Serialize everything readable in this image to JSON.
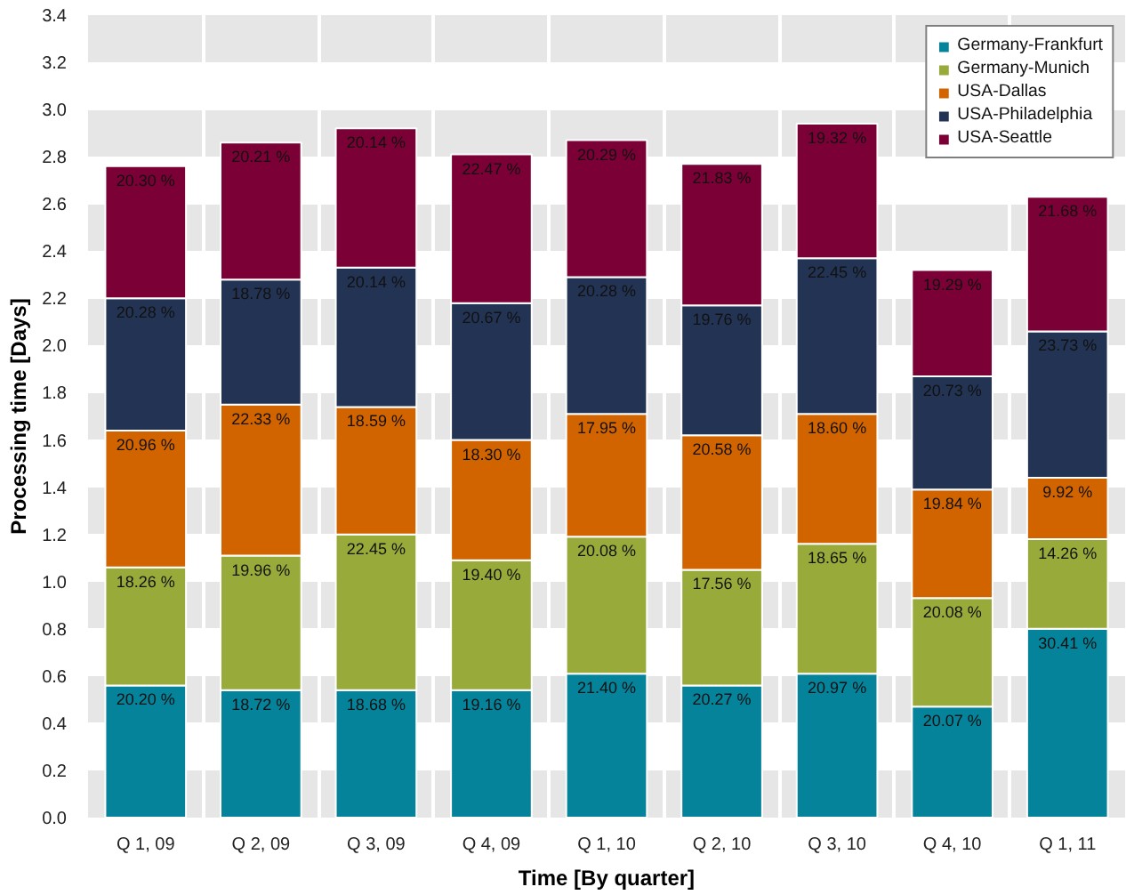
{
  "chart_data": {
    "type": "bar",
    "stacked": true,
    "xlabel": "Time [By quarter]",
    "ylabel": "Processing time [Days]",
    "categories": [
      "Q 1, 09",
      "Q 2, 09",
      "Q 3, 09",
      "Q 4, 09",
      "Q 1, 10",
      "Q 2, 10",
      "Q 3, 10",
      "Q 4, 10",
      "Q 1, 11"
    ],
    "ylim": [
      0,
      3.4
    ],
    "yticks": [
      {
        "value": 0,
        "label": "0.0"
      },
      0.2,
      0.4,
      0.6,
      0.8,
      {
        "value": 1,
        "label": "1.0"
      },
      1.2,
      1.4,
      1.6,
      1.8,
      {
        "value": 2,
        "label": "2.0"
      },
      2.2,
      2.4,
      2.6,
      2.8,
      {
        "value": 3,
        "label": "3.0"
      },
      3.2,
      3.4
    ],
    "grid": true,
    "legend": "top right",
    "series": [
      {
        "name": "Germany-Frankfurt",
        "color": "#05839a",
        "values": [
          0.56,
          0.54,
          0.54,
          0.54,
          0.61,
          0.56,
          0.61,
          0.47,
          0.8
        ]
      },
      {
        "name": "Germany-Munich",
        "color": "#98ab3a",
        "values": [
          0.5,
          0.57,
          0.66,
          0.55,
          0.58,
          0.49,
          0.55,
          0.46,
          0.38
        ]
      },
      {
        "name": "USA-Dallas",
        "color": "#d26400",
        "values": [
          0.58,
          0.64,
          0.54,
          0.51,
          0.52,
          0.57,
          0.55,
          0.46,
          0.26
        ]
      },
      {
        "name": "USA-Philadelphia",
        "color": "#233353",
        "values": [
          0.56,
          0.53,
          0.59,
          0.58,
          0.58,
          0.55,
          0.66,
          0.48,
          0.62
        ]
      },
      {
        "name": "USA-Seattle",
        "color": "#7b0035",
        "values": [
          0.56,
          0.58,
          0.59,
          0.63,
          0.58,
          0.6,
          0.57,
          0.45,
          0.57
        ]
      }
    ],
    "annotations": [
      {
        "text": "20.20 %",
        "x": "Q 1, 09",
        "y": 0.56
      },
      {
        "text": "18.26 %",
        "x": "Q 1, 09",
        "y": 1.06
      },
      {
        "text": "20.96 %",
        "x": "Q 1, 09",
        "y": 1.64
      },
      {
        "text": "20.28 %",
        "x": "Q 1, 09",
        "y": 2.2
      },
      {
        "text": "20.30 %",
        "x": "Q 1, 09",
        "y": 2.76
      },
      {
        "text": "18.72 %",
        "x": "Q 2, 09",
        "y": 0.54
      },
      {
        "text": "19.96 %",
        "x": "Q 2, 09",
        "y": 1.11
      },
      {
        "text": "22.33 %",
        "x": "Q 2, 09",
        "y": 1.75
      },
      {
        "text": "18.78 %",
        "x": "Q 2, 09",
        "y": 2.28
      },
      {
        "text": "20.21 %",
        "x": "Q 2, 09",
        "y": 2.86
      },
      {
        "text": "18.68 %",
        "x": "Q 3, 09",
        "y": 0.54
      },
      {
        "text": "22.45 %",
        "x": "Q 3, 09",
        "y": 1.2
      },
      {
        "text": "18.59 %",
        "x": "Q 3, 09",
        "y": 1.74
      },
      {
        "text": "20.14 %",
        "x": "Q 3, 09",
        "y": 2.33
      },
      {
        "text": "20.14 %",
        "x": "Q 3, 09",
        "y": 2.92
      },
      {
        "text": "19.16 %",
        "x": "Q 4, 09",
        "y": 0.54
      },
      {
        "text": "19.40 %",
        "x": "Q 4, 09",
        "y": 1.09
      },
      {
        "text": "18.30 %",
        "x": "Q 4, 09",
        "y": 1.6
      },
      {
        "text": "20.67 %",
        "x": "Q 4, 09",
        "y": 2.18
      },
      {
        "text": "22.47 %",
        "x": "Q 4, 09",
        "y": 2.81
      },
      {
        "text": "21.40 %",
        "x": "Q 1, 10",
        "y": 0.61
      },
      {
        "text": "20.08 %",
        "x": "Q 1, 10",
        "y": 1.19
      },
      {
        "text": "17.95 %",
        "x": "Q 1, 10",
        "y": 1.71
      },
      {
        "text": "20.28 %",
        "x": "Q 1, 10",
        "y": 2.29
      },
      {
        "text": "20.29 %",
        "x": "Q 1, 10",
        "y": 2.87
      },
      {
        "text": "20.27 %",
        "x": "Q 2, 10",
        "y": 0.56
      },
      {
        "text": "17.56 %",
        "x": "Q 2, 10",
        "y": 1.05
      },
      {
        "text": "20.58 %",
        "x": "Q 2, 10",
        "y": 1.62
      },
      {
        "text": "19.76 %",
        "x": "Q 2, 10",
        "y": 2.17
      },
      {
        "text": "21.83 %",
        "x": "Q 2, 10",
        "y": 2.77
      },
      {
        "text": "20.97 %",
        "x": "Q 3, 10",
        "y": 0.61
      },
      {
        "text": "18.65 %",
        "x": "Q 3, 10",
        "y": 1.16
      },
      {
        "text": "18.60 %",
        "x": "Q 3, 10",
        "y": 1.71
      },
      {
        "text": "22.45 %",
        "x": "Q 3, 10",
        "y": 2.37
      },
      {
        "text": "19.32 %",
        "x": "Q 3, 10",
        "y": 2.94
      },
      {
        "text": "20.07 %",
        "x": "Q 4, 10",
        "y": 0.47
      },
      {
        "text": "20.08 %",
        "x": "Q 4, 10",
        "y": 0.93
      },
      {
        "text": "19.84 %",
        "x": "Q 4, 10",
        "y": 1.39
      },
      {
        "text": "20.73 %",
        "x": "Q 4, 10",
        "y": 1.87
      },
      {
        "text": "19.29 %",
        "x": "Q 4, 10",
        "y": 2.32
      },
      {
        "text": "30.41 %",
        "x": "Q 1, 11",
        "y": 0.8
      },
      {
        "text": "14.26 %",
        "x": "Q 1, 11",
        "y": 1.18
      },
      {
        "text": "9.92 %",
        "x": "Q 1, 11",
        "y": 1.44
      },
      {
        "text": "23.73 %",
        "x": "Q 1, 11",
        "y": 2.06
      },
      {
        "text": "21.68 %",
        "x": "Q 1, 11",
        "y": 2.63
      }
    ]
  }
}
